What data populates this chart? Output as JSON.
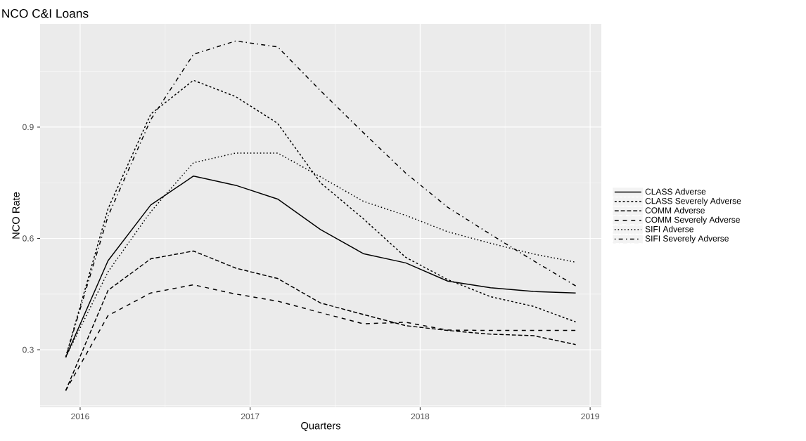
{
  "chart_data": {
    "type": "line",
    "title": "NCO C&I Loans",
    "xlabel": "Quarters",
    "ylabel": "NCO Rate",
    "x": [
      "2015-12-01",
      "2016-03-01",
      "2016-06-01",
      "2016-09-01",
      "2016-12-01",
      "2017-03-01",
      "2017-06-01",
      "2017-09-01",
      "2017-12-01",
      "2018-03-01",
      "2018-06-01",
      "2018-09-01",
      "2018-12-01"
    ],
    "series": [
      {
        "name": "CLASS Adverse",
        "color": "#000000",
        "line_style": "solid",
        "values": [
          0.28,
          0.54,
          0.69,
          0.768,
          0.743,
          0.706,
          0.624,
          0.559,
          0.534,
          0.485,
          0.467,
          0.457,
          0.453
        ]
      },
      {
        "name": "CLASS Severely Adverse",
        "color": "#000000",
        "line_style": "dashed",
        "values": [
          0.28,
          0.68,
          0.935,
          1.026,
          0.982,
          0.91,
          0.75,
          0.653,
          0.549,
          0.489,
          0.443,
          0.417,
          0.375
        ]
      },
      {
        "name": "COMM Adverse",
        "color": "#000000",
        "line_style": "longdashed",
        "values": [
          0.19,
          0.46,
          0.545,
          0.566,
          0.52,
          0.492,
          0.426,
          0.395,
          0.365,
          0.352,
          0.342,
          0.338,
          0.314
        ]
      },
      {
        "name": "COMM Severely Adverse",
        "color": "#000000",
        "line_style": "loosely dashed",
        "values": [
          0.19,
          0.392,
          0.453,
          0.475,
          0.45,
          0.431,
          0.4,
          0.37,
          0.374,
          0.353,
          0.352,
          0.352,
          0.352
        ]
      },
      {
        "name": "SIFI Adverse",
        "color": "#000000",
        "line_style": "dotted",
        "values": [
          0.28,
          0.51,
          0.672,
          0.804,
          0.83,
          0.83,
          0.766,
          0.7,
          0.662,
          0.618,
          0.587,
          0.558,
          0.536
        ]
      },
      {
        "name": "SIFI Severely Adverse",
        "color": "#000000",
        "line_style": "dashdot",
        "values": [
          0.28,
          0.66,
          0.92,
          1.096,
          1.132,
          1.116,
          0.998,
          0.885,
          0.776,
          0.684,
          0.611,
          0.54,
          0.472
        ]
      }
    ],
    "xlim": [
      "2015-10-07",
      "2019-01-25"
    ],
    "ylim": [
      0.145,
      1.178
    ],
    "xticks": [
      {
        "value": "2016",
        "label": "2016"
      },
      {
        "value": "2017",
        "label": "2017"
      },
      {
        "value": "2018",
        "label": "2018"
      },
      {
        "value": "2019",
        "label": "2019"
      }
    ],
    "yticks": [
      0.3,
      0.6,
      0.9
    ],
    "grid": true,
    "legend": "right",
    "marker": "none"
  }
}
